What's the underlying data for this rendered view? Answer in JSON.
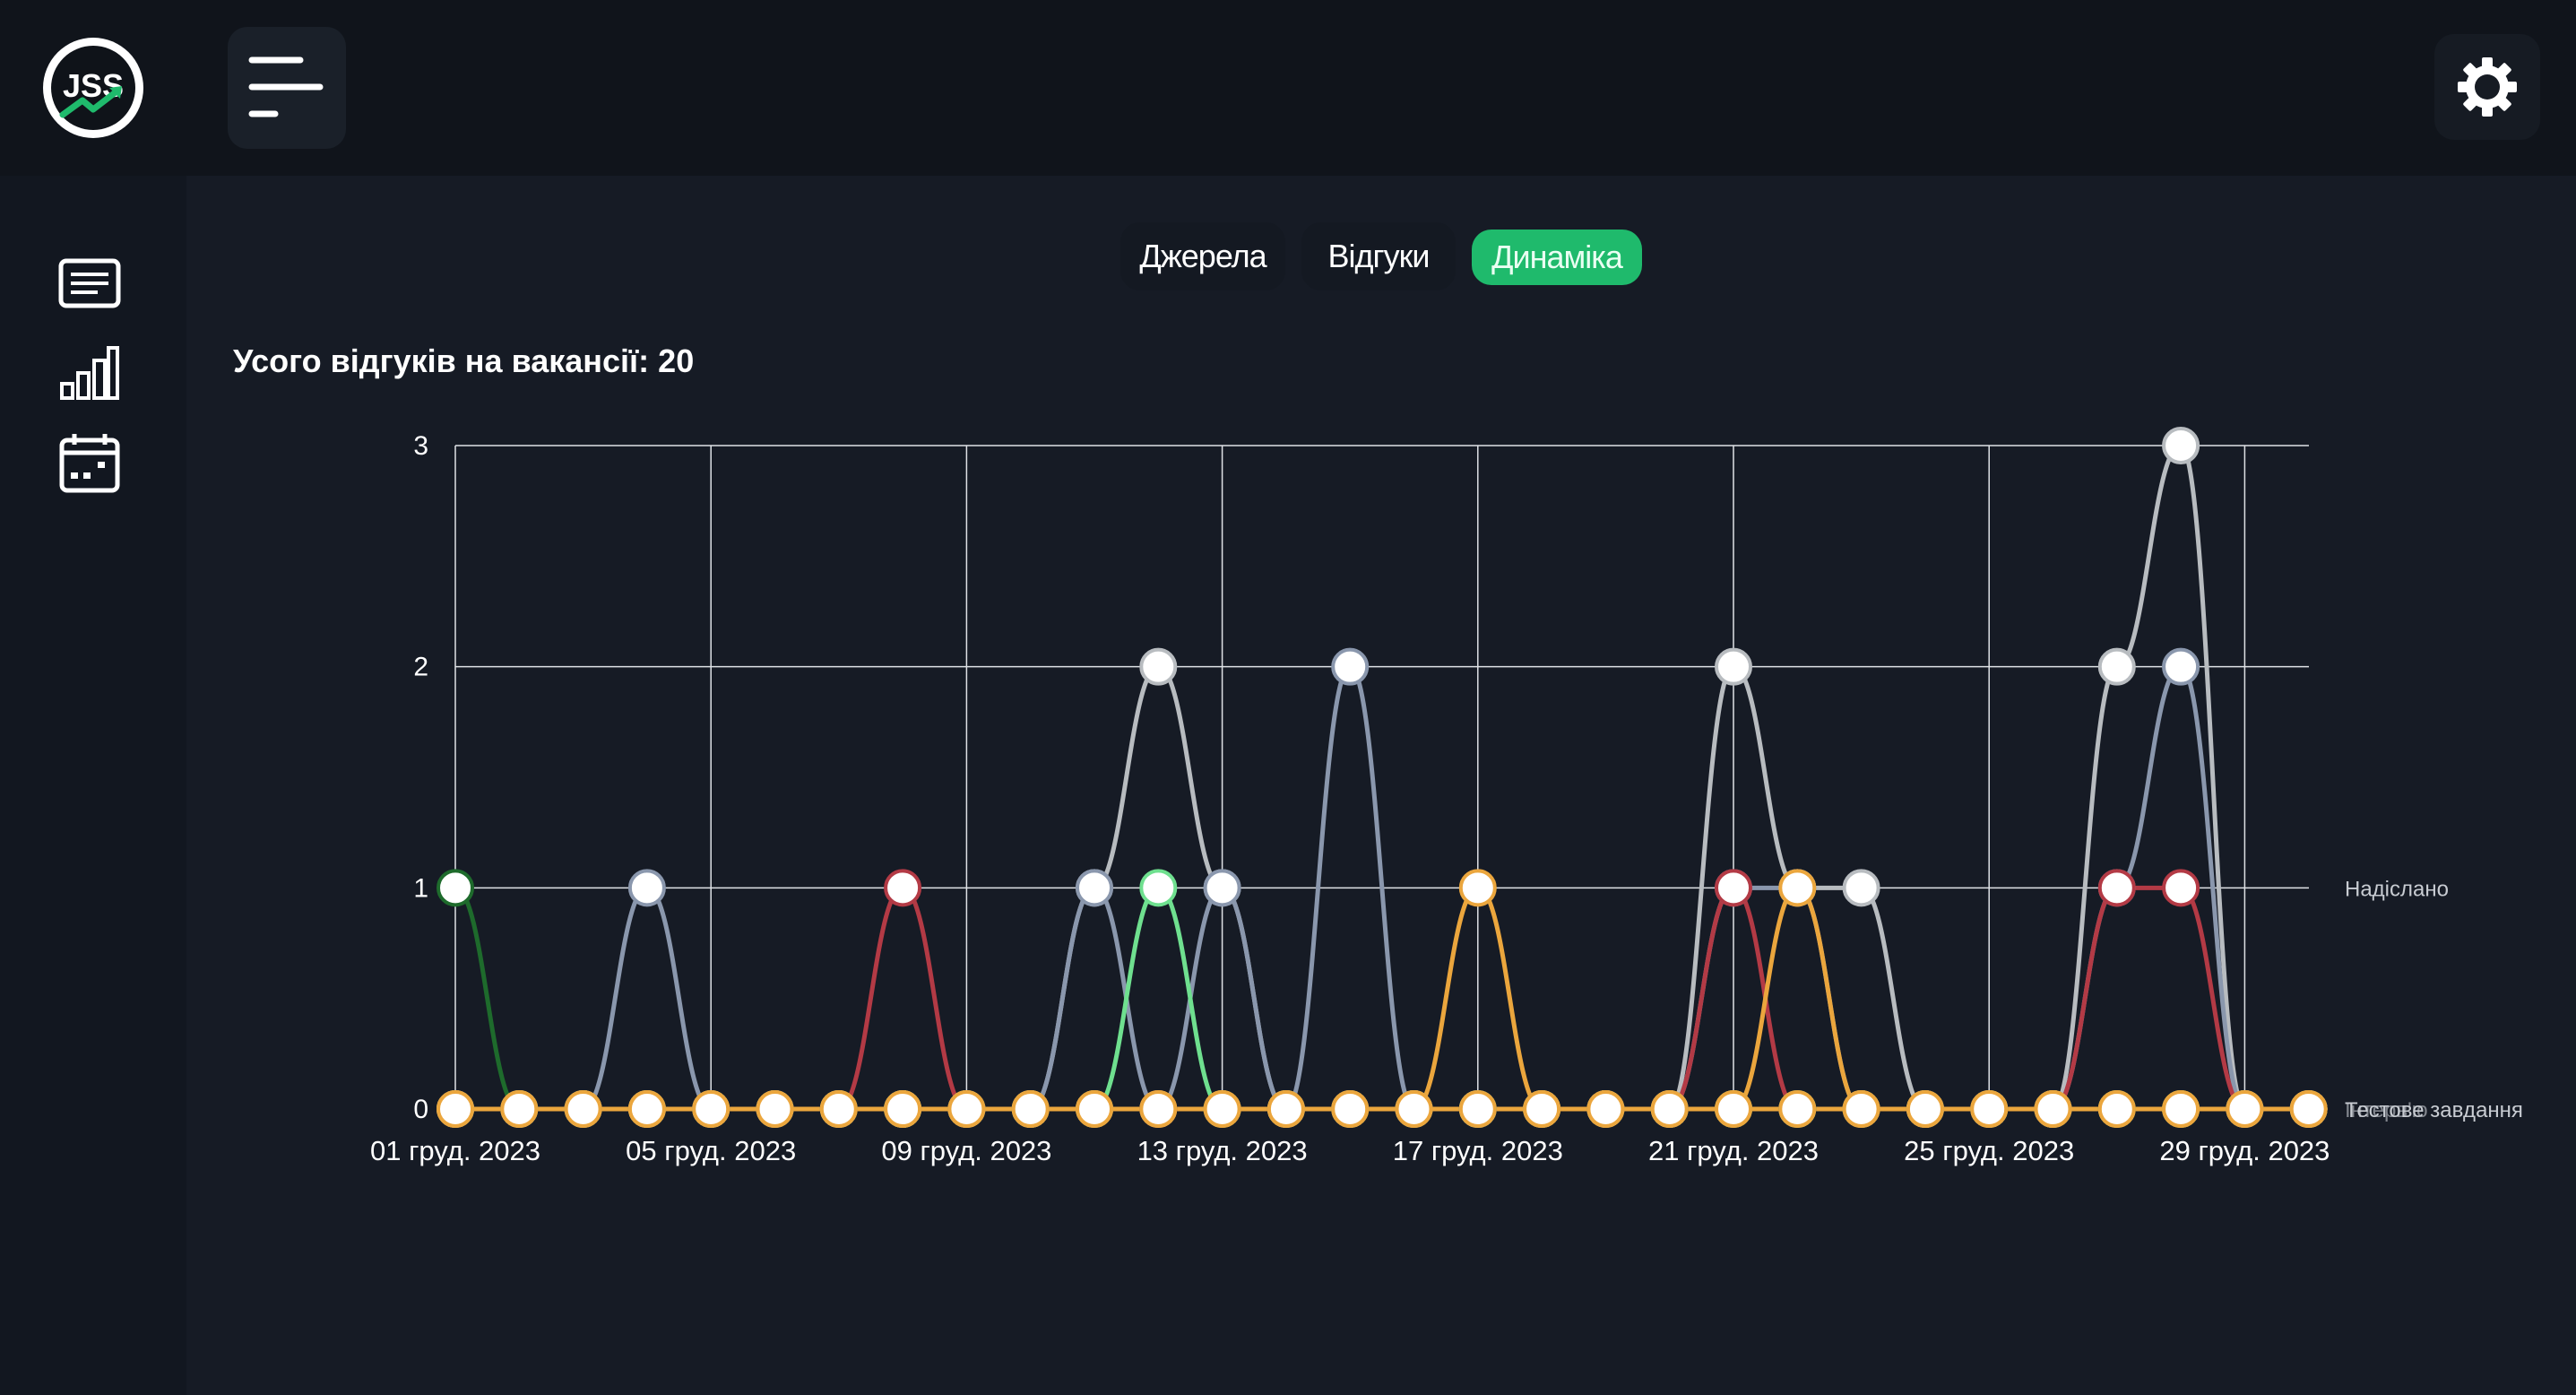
{
  "app": {
    "logo_text": "JSS"
  },
  "icons": {
    "menu": "menu-icon",
    "settings": "gear-icon",
    "sidebar": [
      "document-list-icon",
      "bar-chart-icon",
      "calendar-icon"
    ]
  },
  "tabs": [
    {
      "label": "Джерела",
      "active": false
    },
    {
      "label": "Відгуки",
      "active": false
    },
    {
      "label": "Динаміка",
      "active": true
    }
  ],
  "summary": {
    "label": "Усого відгуків на вакансії: 20"
  },
  "colors": {
    "accent": "#1fba6c",
    "background": "#161b25",
    "topbar": "#10141b"
  },
  "chart_data": {
    "type": "line",
    "title": "",
    "xlabel": "",
    "ylabel": "",
    "ylim": [
      0,
      3
    ],
    "y_ticks": [
      "0",
      "1",
      "2",
      "3"
    ],
    "x_tick_labels": [
      "01 груд. 2023",
      "05 груд. 2023",
      "09 груд. 2023",
      "13 груд. 2023",
      "17 груд. 2023",
      "21 груд. 2023",
      "25 груд. 2023",
      "29 груд. 2023"
    ],
    "x": [
      "01 груд. 2023",
      "02 груд. 2023",
      "03 груд. 2023",
      "04 груд. 2023",
      "05 груд. 2023",
      "06 груд. 2023",
      "07 груд. 2023",
      "08 груд. 2023",
      "09 груд. 2023",
      "10 груд. 2023",
      "11 груд. 2023",
      "12 груд. 2023",
      "13 груд. 2023",
      "14 груд. 2023",
      "15 груд. 2023",
      "16 груд. 2023",
      "17 груд. 2023",
      "18 груд. 2023",
      "19 груд. 2023",
      "20 груд. 2023",
      "21 груд. 2023",
      "22 груд. 2023",
      "23 груд. 2023",
      "24 груд. 2023",
      "25 груд. 2023",
      "26 груд. 2023",
      "27 груд. 2023",
      "28 груд. 2023",
      "29 груд. 2023",
      "30 груд. 2023"
    ],
    "grid": true,
    "legend_placement": "right",
    "series": [
      {
        "name": "",
        "color": "#1e6b2c",
        "values": [
          1,
          0,
          0,
          0,
          0,
          0,
          0,
          0,
          0,
          0,
          0,
          0,
          0,
          0,
          0,
          0,
          0,
          0,
          0,
          0,
          0,
          0,
          0,
          0,
          0,
          0,
          0,
          0,
          0,
          0
        ]
      },
      {
        "name": "",
        "color": "#b8bcc0",
        "values": [
          0,
          0,
          0,
          0,
          0,
          0,
          0,
          0,
          0,
          0,
          1,
          2,
          1,
          0,
          0,
          0,
          0,
          0,
          0,
          0,
          2,
          1,
          1,
          0,
          0,
          0,
          2,
          3,
          0,
          0
        ]
      },
      {
        "name": "Надіслано",
        "color": "#8a97ad",
        "values": [
          0,
          0,
          0,
          1,
          0,
          0,
          0,
          0,
          0,
          0,
          1,
          0,
          1,
          0,
          2,
          0,
          0,
          0,
          0,
          0,
          1,
          1,
          0,
          0,
          0,
          0,
          1,
          2,
          0,
          0
        ]
      },
      {
        "name": "",
        "color": "#b33a45",
        "values": [
          0,
          0,
          0,
          0,
          0,
          0,
          0,
          1,
          0,
          0,
          0,
          0,
          0,
          0,
          0,
          0,
          0,
          0,
          0,
          0,
          1,
          0,
          0,
          0,
          0,
          0,
          1,
          1,
          0,
          0
        ]
      },
      {
        "name": "",
        "color": "#6fe08f",
        "values": [
          0,
          0,
          0,
          0,
          0,
          0,
          0,
          0,
          0,
          0,
          0,
          1,
          0,
          0,
          0,
          0,
          0,
          0,
          0,
          0,
          0,
          0,
          0,
          0,
          0,
          0,
          0,
          0,
          0,
          0
        ]
      },
      {
        "name": "Інтерв'ю",
        "color": "#eba63d",
        "values": [
          0,
          0,
          0,
          0,
          0,
          0,
          0,
          0,
          0,
          0,
          0,
          0,
          0,
          0,
          0,
          0,
          1,
          0,
          0,
          0,
          0,
          1,
          0,
          0,
          0,
          0,
          0,
          0,
          0,
          0
        ]
      },
      {
        "name": "Тестове завдання",
        "color": "#eba63d",
        "values": [
          0,
          0,
          0,
          0,
          0,
          0,
          0,
          0,
          0,
          0,
          0,
          0,
          0,
          0,
          0,
          0,
          0,
          0,
          0,
          0,
          0,
          0,
          0,
          0,
          0,
          0,
          0,
          0,
          0,
          0
        ]
      }
    ],
    "end_labels": [
      {
        "text": "Надіслано",
        "value": 1
      },
      {
        "text": "Інтерв'ю",
        "value": 0
      },
      {
        "text": "Тестове завдання",
        "value": 0
      }
    ]
  }
}
